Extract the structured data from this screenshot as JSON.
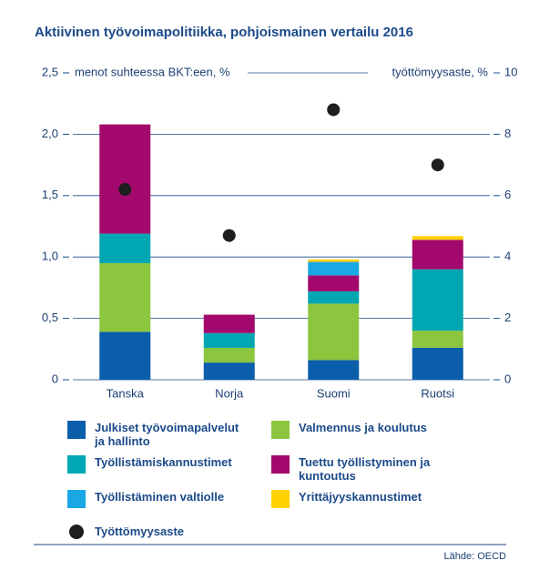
{
  "chart_data": {
    "type": "bar",
    "stacked": true,
    "title": "Aktiivinen työvoimapolitiikka, pohjoismainen vertailu 2016",
    "y_label": "menot suhteessa BKT:een, %",
    "y2_label": "työttömyysaste, %",
    "source": "Lähde: OECD",
    "categories": [
      "Tanska",
      "Norja",
      "Suomi",
      "Ruotsi"
    ],
    "ylim": [
      0,
      2.5
    ],
    "yticks": [
      0,
      {
        "value": 0.5,
        "label": "0,5"
      },
      {
        "value": 1.0,
        "label": "1,0"
      },
      {
        "value": 1.5,
        "label": "1,5"
      },
      {
        "value": 2.0,
        "label": "2,0"
      },
      {
        "value": 2.5,
        "label": "2,5"
      }
    ],
    "y2lim": [
      0,
      10
    ],
    "y2ticks": [
      0,
      2,
      4,
      6,
      8,
      10
    ],
    "grid": true,
    "series": [
      {
        "name": "Julkiset työvoimapalvelut ja hallinto",
        "color": "#0b5eaa",
        "values": [
          0.39,
          0.14,
          0.16,
          0.26
        ]
      },
      {
        "name": "Valmennus ja koulutus",
        "color": "#8cc63f",
        "values": [
          0.56,
          0.12,
          0.46,
          0.14
        ]
      },
      {
        "name": "Työllistämiskannustimet",
        "color": "#00a7b3",
        "values": [
          0.24,
          0.12,
          0.1,
          0.5
        ]
      },
      {
        "name": "Tuettu työllistyminen ja kuntoutus",
        "color": "#a3086c",
        "values": [
          0.89,
          0.15,
          0.13,
          0.24
        ]
      },
      {
        "name": "Työllistäminen valtiolle",
        "color": "#19a8e3",
        "values": [
          0,
          0,
          0.11,
          0
        ]
      },
      {
        "name": "Yrittäjyyskannustimet",
        "color": "#ffd200",
        "values": [
          0,
          0,
          0.02,
          0.03
        ]
      },
      {
        "name": "Työttömyysaste",
        "color": "#1e1e1e",
        "axis": "y2",
        "marker": "dot",
        "values": [
          6.2,
          4.7,
          8.8,
          7.0
        ]
      }
    ]
  }
}
